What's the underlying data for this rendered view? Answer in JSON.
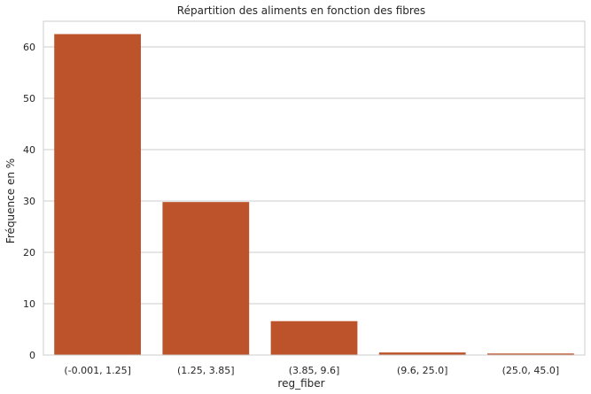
{
  "chart_data": {
    "type": "bar",
    "title": "Répartition des aliments en fonction des fibres",
    "xlabel": "reg_fiber",
    "ylabel": "Fréquence en %",
    "categories": [
      "(-0.001, 1.25]",
      "(1.25, 3.85]",
      "(3.85, 9.6]",
      "(9.6, 25.0]",
      "(25.0, 45.0]"
    ],
    "values": [
      62.5,
      29.8,
      6.6,
      0.5,
      0.3
    ],
    "ylim": [
      0,
      65
    ],
    "yticks": [
      0,
      10,
      20,
      30,
      40,
      50,
      60
    ],
    "grid": true,
    "bar_color": "#bc532b",
    "grid_color": "#cccccc"
  }
}
